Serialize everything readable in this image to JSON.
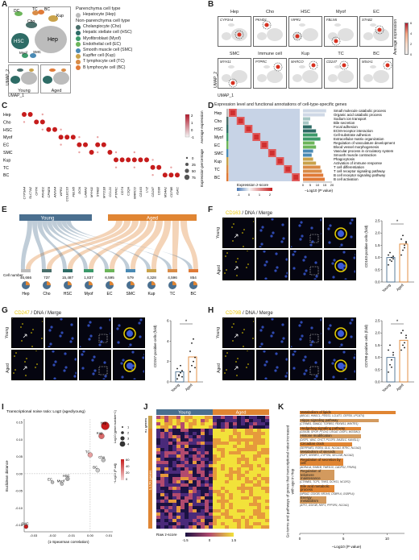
{
  "panel_letters": [
    "A",
    "B",
    "C",
    "D",
    "E",
    "F",
    "G",
    "H",
    "I",
    "J",
    "K"
  ],
  "panelA": {
    "legend_title_paren": "Parenchyma cell type",
    "legend_title_nonparen": "Non-parenchyma cell type",
    "cell_types": [
      {
        "label": "Hepatocyte (Hep)",
        "color": "#bcbcbc"
      },
      {
        "label": "Cholangiocyte (Cho)",
        "color": "#4a6f6b"
      },
      {
        "label": "Hepatic stellate cell (HSC)",
        "color": "#2e6c66"
      },
      {
        "label": "Myofibroblast (Myof)",
        "color": "#3c9a6a"
      },
      {
        "label": "Endothelial cell (EC)",
        "color": "#6cb55a"
      },
      {
        "label": "Smooth muscle cell (SMC)",
        "color": "#4a8ab4"
      },
      {
        "label": "Kupffer cell (Kup)",
        "color": "#c9a24a"
      },
      {
        "label": "T lymphocyte cell (TC)",
        "color": "#d98c47"
      },
      {
        "label": "B lymphocyte cell (BC)",
        "color": "#e07a37"
      }
    ],
    "umap_labels": [
      "DC",
      "TC",
      "BC",
      "Kup",
      "Cho",
      "HSC",
      "Hep",
      "Myof",
      "SMC"
    ],
    "young": "Young",
    "aged": "Aged",
    "umap1": "UMAP_1",
    "umap2": "UMAP_2"
  },
  "panelB": {
    "cols": [
      "Hep",
      "Cho",
      "HSC",
      "Myof",
      "EC"
    ],
    "cols2": [
      "SMC",
      "Immune cell",
      "Kup",
      "TC",
      "BC"
    ],
    "genes_row1": [
      "CYP3A4",
      "PKHD1",
      "VIPR1",
      "FBLN5",
      "STAB2"
    ],
    "genes_row2": [
      "MYH11",
      "PTPRC",
      "MARCO",
      "CD247",
      "MS4A1"
    ],
    "legend_title": "Average expression",
    "legend_ticks": [
      "6",
      "4",
      "2",
      "0"
    ],
    "umap1": "UMAP_1",
    "umap2": "UMAP_2"
  },
  "panelC": {
    "rows": [
      "Hep",
      "Cho",
      "HSC",
      "Myof",
      "EC",
      "SMC",
      "Kup",
      "TC",
      "BC"
    ],
    "genes": [
      "CYP3A4",
      "SLC7A2",
      "CFTR",
      "PKHD1",
      "CPNE8",
      "ANXA4",
      "VIPR1",
      "COLEC10",
      "FBLN5",
      "DCN",
      "LAMA2",
      "MYH11",
      "STAB2",
      "MYO1B",
      "CCL21",
      "PTPRC",
      "CD74",
      "C1QA",
      "MARCO",
      "CD163",
      "LYZ",
      "CD247",
      "CD96",
      "MS4A1",
      "CD79B",
      "IGKC"
    ],
    "legend_avg": "Average expression",
    "avg_ticks": [
      "2",
      "1",
      "0",
      "-1"
    ],
    "legend_pct": "Expression percentage",
    "pct_ticks": [
      "0",
      "25",
      "50",
      "75"
    ]
  },
  "panelD": {
    "title": "Expression level and functional annotations of cell-type-specific genes",
    "rows": [
      "Hep",
      "Cho",
      "HSC",
      "Myof",
      "EC",
      "SMC",
      "Kup",
      "TC",
      "BC"
    ],
    "terms": [
      {
        "label": "Small molecule catabolic process",
        "value": 16,
        "color": "#cfd8e6"
      },
      {
        "label": "Organic acid catabolic process",
        "value": 15,
        "color": "#cfd8e6"
      },
      {
        "label": "Sodium ion transport",
        "value": 5,
        "color": "#a6c7c4"
      },
      {
        "label": "Bile secretion",
        "value": 4,
        "color": "#a6c7c4"
      },
      {
        "label": "Focal adhesion",
        "value": 6,
        "color": "#2e6c66"
      },
      {
        "label": "ECM-receptor interaction",
        "value": 9,
        "color": "#2e6c66"
      },
      {
        "label": "Cell-substrate adhesion",
        "value": 10,
        "color": "#3c9a6a"
      },
      {
        "label": "Extracellular matrix organization",
        "value": 12,
        "color": "#3c9a6a"
      },
      {
        "label": "Regulation of vasculature development",
        "value": 8,
        "color": "#6cb55a"
      },
      {
        "label": "Blood vessel morphogenesis",
        "value": 9,
        "color": "#6cb55a"
      },
      {
        "label": "Vascular process in circulatory system",
        "value": 7,
        "color": "#4a8ab4"
      },
      {
        "label": "Smooth muscle contraction",
        "value": 6,
        "color": "#4a8ab4"
      },
      {
        "label": "Phagocytosis",
        "value": 7,
        "color": "#c9a24a"
      },
      {
        "label": "Activation of immune response",
        "value": 9,
        "color": "#c9a24a"
      },
      {
        "label": "T cell differentiation",
        "value": 12,
        "color": "#d98c47"
      },
      {
        "label": "T cell receptor signaling pathway",
        "value": 13,
        "color": "#d98c47"
      },
      {
        "label": "B cell receptor signaling pathway",
        "value": 14,
        "color": "#e07a37"
      },
      {
        "label": "B cell activation",
        "value": 15,
        "color": "#e07a37"
      }
    ],
    "zscore_label": "Expression z-score",
    "zscore_ticks": [
      "-1",
      "0",
      "1",
      "2"
    ],
    "xaxis_ticks": [
      "0",
      "5",
      "10",
      "15",
      "20"
    ],
    "xaxis_label": "−Log10 (P value)"
  },
  "panelE": {
    "young": "Young",
    "aged": "Aged",
    "cell_number_label": "Cell number",
    "groups": [
      {
        "name": "Hep",
        "count": "46,666",
        "color": "#bcbcbc"
      },
      {
        "name": "Cho",
        "count": "737",
        "color": "#4a6f6b"
      },
      {
        "name": "HSC",
        "count": "15,487",
        "color": "#2e6c66"
      },
      {
        "name": "Myof",
        "count": "1,837",
        "color": "#3c9a6a"
      },
      {
        "name": "EC",
        "count": "6,595",
        "color": "#6cb55a"
      },
      {
        "name": "SMC",
        "count": "579",
        "color": "#4a8ab4"
      },
      {
        "name": "Kup",
        "count": "4,328",
        "color": "#c9a24a"
      },
      {
        "name": "TC",
        "count": "4,596",
        "color": "#d98c47"
      },
      {
        "name": "BC",
        "count": "854",
        "color": "#e07a37"
      }
    ]
  },
  "panelF": {
    "title_marker": "CD163",
    "title_rest": " / DNA / Merge",
    "young": "Young",
    "aged": "Aged",
    "ylabel": "CD163-positive cells (fold)",
    "yticks": [
      "2.5",
      "2.0",
      "1.5",
      "1.0",
      "0.5",
      "0.0"
    ],
    "sig": "*",
    "bars": [
      {
        "label": "Young",
        "value": 1.0
      },
      {
        "label": "Aged",
        "value": 1.55
      }
    ],
    "young_points": [
      0.7,
      0.9,
      1.0,
      1.05,
      1.1,
      1.2,
      0.85,
      0.95
    ],
    "aged_points": [
      1.1,
      1.3,
      1.5,
      1.6,
      1.75,
      1.9,
      1.4,
      1.65
    ]
  },
  "panelG": {
    "title_marker": "CD247",
    "title_rest": " / DNA / Merge",
    "young": "Young",
    "aged": "Aged",
    "ylabel": "CD247-positive cells (fold)",
    "yticks": [
      "6",
      "4",
      "2",
      "0"
    ],
    "sig": "*",
    "bars": [
      {
        "label": "Young",
        "value": 1.0
      },
      {
        "label": "Aged",
        "value": 2.45
      }
    ],
    "young_points": [
      0.3,
      0.6,
      0.9,
      1.1,
      1.3,
      0.7,
      1.6,
      0.5
    ],
    "aged_points": [
      1.0,
      1.6,
      2.0,
      2.4,
      3.0,
      3.8,
      4.2,
      1.4
    ]
  },
  "panelH": {
    "title_marker": "CD79B",
    "title_rest": " / DNA / Merge",
    "young": "Young",
    "aged": "Aged",
    "ylabel": "CD79B-positive cells (fold)",
    "yticks": [
      "2.5",
      "2.0",
      "1.5",
      "1.0",
      "0.5",
      "0.0"
    ],
    "sig": "*",
    "bars": [
      {
        "label": "Young",
        "value": 1.0
      },
      {
        "label": "Aged",
        "value": 1.7
      }
    ],
    "young_points": [
      0.4,
      0.7,
      0.9,
      1.1,
      1.3,
      1.5,
      0.6,
      1.2
    ],
    "aged_points": [
      1.3,
      1.5,
      1.6,
      1.8,
      2.0,
      2.1,
      1.4,
      1.9
    ]
  },
  "panelI": {
    "title": "Transcriptional noise ratio: Log2 (aged/young)",
    "xlabel": "(1-Spearman correlation)",
    "ylabel": "Euclidean distance",
    "xticks": [
      "-0.03",
      "-0.02",
      "-0.01",
      "0.00",
      "0.01"
    ],
    "yticks": [
      "0.15",
      "0.10",
      "0.05",
      "0.00",
      "-0.05",
      "-0.10",
      "-0.15"
    ],
    "size_legend_title": "Log10 (gene number+1)",
    "size_ticks": [
      "1",
      "2",
      "3",
      "4"
    ],
    "color_legend_title": "−Log10 (P adj)",
    "color_ticks": [
      "60",
      "40",
      "20",
      "0"
    ],
    "points": [
      {
        "label": "Hep",
        "x": 0.008,
        "y": 0.14
      },
      {
        "label": "Kup",
        "x": 0.006,
        "y": 0.11
      },
      {
        "label": "TC",
        "x": 0.0,
        "y": 0.055
      },
      {
        "label": "Cho",
        "x": 0.007,
        "y": 0.04
      },
      {
        "label": "BC",
        "x": 0.004,
        "y": 0.01
      },
      {
        "label": "HSC",
        "x": -0.012,
        "y": -0.015
      },
      {
        "label": "EC",
        "x": -0.02,
        "y": -0.025
      },
      {
        "label": "Myof",
        "x": -0.015,
        "y": -0.03
      },
      {
        "label": "SMC",
        "x": -0.034,
        "y": -0.155
      }
    ]
  },
  "panelJ": {
    "young": "Young",
    "aged": "Aged",
    "up_genes": "91 genes",
    "down_genes": "1,170 genes",
    "zscore_label": "Raw z-score",
    "zticks": [
      "-1.5",
      "0",
      "1.5"
    ]
  },
  "panelK": {
    "ylabel": "Go terms and pathways of genes that transcriptional noise increased with age in Hep",
    "xlabel": "−Log10 (P value)",
    "xticks": [
      "0",
      "5",
      "10"
    ],
    "terms": [
      {
        "head": "Metabolism of lipids",
        "genes": "ABCA1, HMGCL, PDSS1, LCLAT1, CERS6, LPCAT4",
        "value": 11
      },
      {
        "head": "Hippo signaling pathway",
        "genes": "CTNNB1, SMAD2, TGFBR2, FBXW11, WWTR1",
        "value": 9
      },
      {
        "head": "Hedgehog signaling pathway",
        "genes": "GSK3B, SPOP, PTCH2, LRGAT, DISP1, MOSMO",
        "value": 7
      },
      {
        "head": "Histone modification",
        "genes": "DISP1, WAC, CHCT, PCGF5, JMJD1C, KANSL1",
        "value": 7
      },
      {
        "head": "Circadian clock",
        "genes": "SERPINE1, RORA, GLI1, NCOA1, BTRC, NCOA2",
        "value": 6
      },
      {
        "head": "Metabolism of steroids",
        "genes": "FDFT, SREBF2, CYP7B1, SEC23B, NCOA2",
        "value": 5
      },
      {
        "head": "Regulation of secretion by cell",
        "genes": "ADRA1A, RAB1B, TMED10, CADPS2, FFAR4",
        "value": 5
      },
      {
        "head": "Regulation of telomere maintenance",
        "genes": "CTNNB1, TCP1, TNKS, DCHS1, NCOR2",
        "value": 4
      },
      {
        "head": "Bile acid metabolic process",
        "genes": "NR5A2, GSK3B, NR1H4, OSBPL6, OSBPL6",
        "value": 4
      },
      {
        "head": "Energy metabolism",
        "genes": "ATF2, GSK3B, NRF1, PPP3R1, NCOA1",
        "value": 3
      }
    ]
  }
}
